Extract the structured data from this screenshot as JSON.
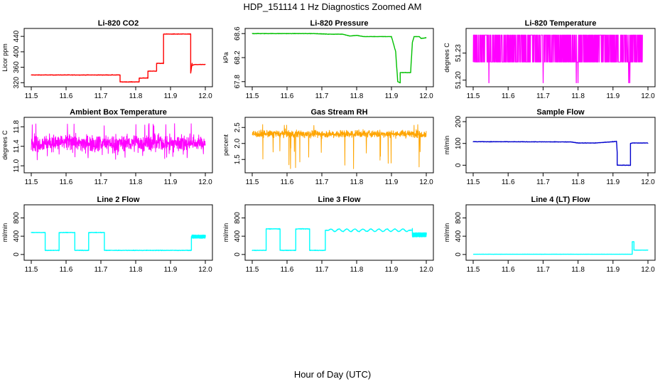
{
  "figure": {
    "title": "HDP_151114  1 Hz Diagnostics Zoomed AM",
    "xlabel": "Hour of Day (UTC)"
  },
  "chart_data": [
    {
      "type": "line",
      "title": "Li-820 CO2",
      "ylabel": "Licor ppm",
      "color": "#ff0000",
      "xlim": [
        11.5,
        12.0
      ],
      "ylim": [
        315,
        455
      ],
      "xticks": [
        "11.5",
        "11.6",
        "11.7",
        "11.8",
        "11.9",
        "12.0"
      ],
      "yticks": [
        320,
        360,
        400,
        440
      ],
      "series": [
        {
          "name": "CO2",
          "x": [
            11.5,
            11.755,
            11.755,
            11.81,
            11.81,
            11.835,
            11.835,
            11.86,
            11.86,
            11.88,
            11.88,
            11.958,
            11.958,
            11.962,
            11.962,
            11.97,
            12.0
          ],
          "y": [
            340,
            340,
            322,
            322,
            332,
            332,
            350,
            350,
            370,
            370,
            446,
            446,
            345,
            370,
            365,
            367,
            367
          ],
          "noise": 1.0
        }
      ]
    },
    {
      "type": "line",
      "title": "Li-820 Pressure",
      "ylabel": "kPa",
      "color": "#00c000",
      "xlim": [
        11.5,
        12.0
      ],
      "ylim": [
        67.75,
        68.65
      ],
      "xticks": [
        "11.5",
        "11.6",
        "11.7",
        "11.8",
        "11.9",
        "12.0"
      ],
      "yticks": [
        67.8,
        68.2,
        68.6
      ],
      "ytick_labels": [
        "67.8",
        "68.2",
        "68.6"
      ],
      "series": [
        {
          "name": "Pressure",
          "x": [
            11.5,
            11.68,
            11.72,
            11.76,
            11.78,
            11.8,
            11.82,
            11.86,
            11.9,
            11.912,
            11.918,
            11.925,
            11.925,
            11.955,
            11.96,
            11.965,
            11.98,
            11.985,
            12.0
          ],
          "y": [
            68.6,
            68.6,
            68.59,
            68.59,
            68.56,
            68.57,
            68.55,
            68.55,
            68.55,
            68.3,
            67.8,
            67.78,
            67.95,
            67.95,
            68.45,
            68.55,
            68.55,
            68.52,
            68.53
          ],
          "noise": 0.005
        }
      ]
    },
    {
      "type": "line",
      "title": "Li-820 Temperature",
      "ylabel": "degrees C",
      "color": "#ff00ff",
      "xlim": [
        11.5,
        12.0
      ],
      "ylim": [
        51.195,
        51.255
      ],
      "xticks": [
        "11.5",
        "11.6",
        "11.7",
        "11.8",
        "11.9",
        "12.0"
      ],
      "yticks": [
        51.2,
        51.23
      ],
      "ytick_labels": [
        "51.20",
        "51.23"
      ],
      "series": [
        {
          "name": "Temperature",
          "levels": [
            51.25,
            51.22
          ],
          "x_end": 11.985,
          "dips": [
            11.545,
            11.7,
            11.795,
            11.8,
            11.945,
            11.948
          ],
          "dip_value": 51.197
        }
      ]
    },
    {
      "type": "line",
      "title": "Ambient Box Temperature",
      "ylabel": "degrees C",
      "color": "#ff00ff",
      "xlim": [
        11.5,
        12.0
      ],
      "ylim": [
        10.9,
        11.95
      ],
      "xticks": [
        "11.5",
        "11.6",
        "11.7",
        "11.8",
        "11.9",
        "12.0"
      ],
      "yticks": [
        11.0,
        11.4,
        11.8
      ],
      "ytick_labels": [
        "11.0",
        "11.4",
        "11.8"
      ],
      "series": [
        {
          "name": "Ambient",
          "base": 11.47,
          "spread": 0.17,
          "extremes": [
            11.1,
            11.87
          ]
        }
      ]
    },
    {
      "type": "line",
      "title": "Gas Stream RH",
      "ylabel": "percent",
      "color": "#ffa500",
      "xlim": [
        11.5,
        12.0
      ],
      "ylim": [
        1.15,
        2.75
      ],
      "xticks": [
        "11.5",
        "11.6",
        "11.7",
        "11.8",
        "11.9",
        "12.0"
      ],
      "yticks": [
        1.5,
        2.0,
        2.5
      ],
      "ytick_labels": [
        "1.5",
        "2.0",
        "2.5"
      ],
      "series": [
        {
          "name": "RH",
          "base": 2.3,
          "spread": 0.12,
          "extremes": [
            1.2,
            2.6
          ]
        }
      ]
    },
    {
      "type": "line",
      "title": "Sample Flow",
      "ylabel": "ml/min",
      "color": "#0000cd",
      "xlim": [
        11.5,
        12.0
      ],
      "ylim": [
        -25,
        210
      ],
      "xticks": [
        "11.5",
        "11.6",
        "11.7",
        "11.8",
        "11.9",
        "12.0"
      ],
      "yticks": [
        0,
        100,
        200
      ],
      "series": [
        {
          "name": "Flow",
          "x": [
            11.5,
            11.78,
            11.8,
            11.85,
            11.9,
            11.91,
            11.912,
            11.912,
            11.95,
            11.95,
            11.955,
            12.0
          ],
          "y": [
            108,
            107,
            102,
            102,
            108,
            110,
            60,
            0,
            0,
            100,
            102,
            102
          ],
          "noise": 1.5
        }
      ]
    },
    {
      "type": "line",
      "title": "Line 2 Flow",
      "ylabel": "ml/min",
      "color": "#00ffff",
      "xlim": [
        11.5,
        12.0
      ],
      "ylim": [
        -80,
        1040
      ],
      "xticks": [
        "11.5",
        "11.6",
        "11.7",
        "11.8",
        "11.9",
        "12.0"
      ],
      "yticks": [
        0,
        400,
        800
      ],
      "series": [
        {
          "name": "Line2",
          "x": [
            11.5,
            11.54,
            11.54,
            11.58,
            11.58,
            11.625,
            11.625,
            11.665,
            11.665,
            11.71,
            11.71,
            11.96,
            11.96,
            12.0
          ],
          "y": [
            480,
            480,
            90,
            90,
            480,
            480,
            90,
            90,
            480,
            480,
            90,
            90,
            390,
            390
          ],
          "noise": 10,
          "band": [
            11.96,
            12.0,
            60
          ]
        }
      ]
    },
    {
      "type": "line",
      "title": "Line 3 Flow",
      "ylabel": "ml/min",
      "color": "#00ffff",
      "xlim": [
        11.5,
        12.0
      ],
      "ylim": [
        -80,
        1040
      ],
      "xticks": [
        "11.5",
        "11.6",
        "11.7",
        "11.8",
        "11.9",
        "12.0"
      ],
      "yticks": [
        0,
        400,
        800
      ],
      "series": [
        {
          "name": "Line3",
          "x": [
            11.5,
            11.54,
            11.54,
            11.58,
            11.58,
            11.625,
            11.625,
            11.665,
            11.665,
            11.71,
            11.71,
            11.96,
            11.96,
            12.0
          ],
          "y": [
            90,
            90,
            560,
            560,
            90,
            90,
            560,
            560,
            90,
            90,
            530,
            530,
            430,
            430
          ],
          "noise": 10,
          "wave": [
            11.72,
            11.95,
            45,
            40
          ],
          "band": [
            11.96,
            12.0,
            80
          ]
        }
      ]
    },
    {
      "type": "line",
      "title": "Line 4 (LT) Flow",
      "ylabel": "ml/min",
      "color": "#00ffff",
      "xlim": [
        11.5,
        12.0
      ],
      "ylim": [
        -80,
        1040
      ],
      "xticks": [
        "11.5",
        "11.6",
        "11.7",
        "11.8",
        "11.9",
        "12.0"
      ],
      "yticks": [
        0,
        400,
        800
      ],
      "series": [
        {
          "name": "Line4",
          "x": [
            11.5,
            11.955,
            11.955,
            11.96,
            11.96,
            12.0
          ],
          "y": [
            5,
            5,
            280,
            280,
            95,
            95
          ],
          "noise": 3
        }
      ]
    }
  ]
}
